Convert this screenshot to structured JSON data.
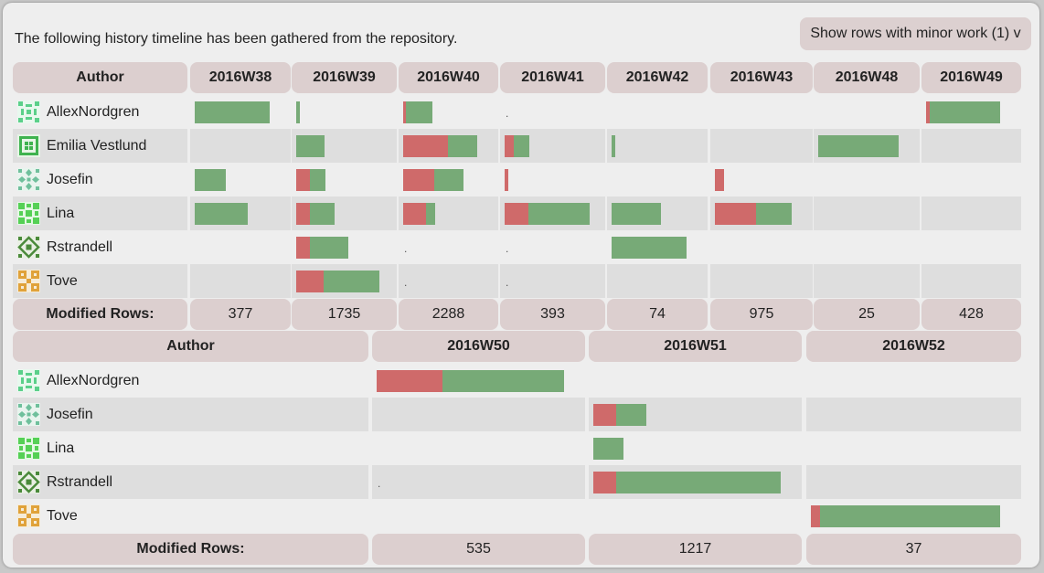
{
  "intro": "The following history timeline has been gathered from the repository.",
  "minor_button": "Show rows with minor work (1) v",
  "colors": {
    "removed": "#cf6a6a",
    "added": "#77aa77",
    "header_bg": "#dccfcf"
  },
  "table1": {
    "author_header": "Author",
    "weeks": [
      "2016W38",
      "2016W39",
      "2016W40",
      "2016W41",
      "2016W42",
      "2016W43",
      "2016W48",
      "2016W49"
    ],
    "rows": [
      {
        "author": "AllexNordgren",
        "avatar": "green-pattern-icon",
        "cells": [
          {
            "removed": 0,
            "added": 1
          },
          {
            "removed": 0,
            "added": 0.05
          },
          {
            "removed": 0.04,
            "added": 0.36
          },
          {
            "minor": true
          },
          {},
          {},
          {},
          {
            "removed": 0.05,
            "added": 0.95
          }
        ]
      },
      {
        "author": "Emilia Vestlund",
        "avatar": "green-grid-icon",
        "cells": [
          {},
          {
            "removed": 0,
            "added": 0.36
          },
          {
            "removed": 0.6,
            "added": 0.4
          },
          {
            "removed": 0.11,
            "added": 0.19
          },
          {
            "removed": 0,
            "added": 0.05
          },
          {},
          {
            "removed": 0,
            "added": 1
          },
          {}
        ]
      },
      {
        "author": "Josefin",
        "avatar": "teal-pattern-icon",
        "cells": [
          {
            "removed": 0,
            "added": 0.42
          },
          {
            "removed": 0.17,
            "added": 0.19
          },
          {
            "removed": 0.42,
            "added": 0.4
          },
          {
            "removed": 0.05,
            "added": 0
          },
          {},
          {
            "removed": 0.12,
            "added": 0
          },
          {},
          {}
        ]
      },
      {
        "author": "Lina",
        "avatar": "green-square-icon",
        "cells": [
          {
            "removed": 0,
            "added": 0.71
          },
          {
            "removed": 0.17,
            "added": 0.31
          },
          {
            "removed": 0.31,
            "added": 0.12
          },
          {
            "removed": 0.3,
            "added": 0.77
          },
          {
            "removed": 0,
            "added": 0.66
          },
          {
            "removed": 0.54,
            "added": 0.47
          },
          {},
          {}
        ]
      },
      {
        "author": "Rstrandell",
        "avatar": "green-diamond-icon",
        "cells": [
          {},
          {
            "removed": 0.17,
            "added": 0.48
          },
          {
            "minor": true
          },
          {
            "minor": true
          },
          {
            "removed": 0,
            "added": 1
          },
          {},
          {},
          {}
        ]
      },
      {
        "author": "Tove",
        "avatar": "orange-pattern-icon",
        "cells": [
          {},
          {
            "removed": 0.35,
            "added": 0.7
          },
          {
            "minor": true
          },
          {
            "minor": true
          },
          {},
          {},
          {},
          {}
        ]
      }
    ],
    "footer_label": "Modified Rows:",
    "totals": [
      "377",
      "1735",
      "2288",
      "393",
      "74",
      "975",
      "25",
      "428"
    ]
  },
  "table2": {
    "author_header": "Author",
    "weeks": [
      "2016W50",
      "2016W51",
      "2016W52"
    ],
    "rows": [
      {
        "author": "AllexNordgren",
        "avatar": "green-pattern-icon",
        "cells": [
          {
            "removed": 0.35,
            "added": 0.65
          },
          {},
          {}
        ]
      },
      {
        "author": "Josefin",
        "avatar": "teal-pattern-icon",
        "cells": [
          {},
          {
            "removed": 0.12,
            "added": 0.16
          },
          {}
        ]
      },
      {
        "author": "Lina",
        "avatar": "green-square-icon",
        "cells": [
          {},
          {
            "removed": 0,
            "added": 0.16
          },
          {}
        ]
      },
      {
        "author": "Rstrandell",
        "avatar": "green-diamond-icon",
        "cells": [
          {
            "minor": true
          },
          {
            "removed": 0.12,
            "added": 0.88
          },
          {}
        ]
      },
      {
        "author": "Tove",
        "avatar": "orange-pattern-icon",
        "cells": [
          {},
          {},
          {
            "removed": 0.05,
            "added": 0.95
          }
        ]
      }
    ],
    "footer_label": "Modified Rows:",
    "totals": [
      "535",
      "1217",
      "37"
    ]
  }
}
